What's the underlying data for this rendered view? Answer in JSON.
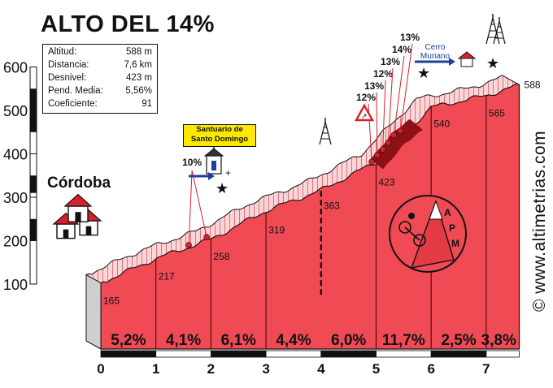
{
  "chart_data": {
    "type": "area",
    "title": "ALTO DEL 14%",
    "xlabel": "",
    "ylabel": "",
    "x_unit": "km",
    "xlim": [
      0,
      7.6
    ],
    "ylim": [
      100,
      600
    ],
    "y_ticks": [
      100,
      200,
      300,
      400,
      500,
      600
    ],
    "x_ticks": [
      0,
      1,
      2,
      3,
      4,
      5,
      6,
      7
    ],
    "profile": [
      {
        "x": 0,
        "y": 165
      },
      {
        "x": 1,
        "y": 217
      },
      {
        "x": 2,
        "y": 258
      },
      {
        "x": 3,
        "y": 319
      },
      {
        "x": 4,
        "y": 363
      },
      {
        "x": 5,
        "y": 423
      },
      {
        "x": 6,
        "y": 540
      },
      {
        "x": 7,
        "y": 565
      },
      {
        "x": 7.6,
        "y": 588
      }
    ],
    "km_altitude_labels": [
      "165",
      "217",
      "258",
      "319",
      "363",
      "423",
      "540",
      "565",
      "588"
    ],
    "segment_gradients": [
      "5,2%",
      "4,1%",
      "6,1%",
      "4,4%",
      "6,0%",
      "11,7%",
      "2,5%",
      "3,8%"
    ],
    "ramp_labels": [
      {
        "x": 1.65,
        "text": "10%"
      },
      {
        "x": 5.0,
        "text": "12%"
      },
      {
        "x": 5.1,
        "text": "13%"
      },
      {
        "x": 5.2,
        "text": "12%"
      },
      {
        "x": 5.3,
        "text": "13%"
      },
      {
        "x": 5.4,
        "text": "14%"
      },
      {
        "x": 5.52,
        "text": "13%"
      }
    ],
    "stats": [
      {
        "label": "Altitud:",
        "value": "588 m"
      },
      {
        "label": "Distancia:",
        "value": "7,6 km"
      },
      {
        "label": "Desnivel:",
        "value": "423 m"
      },
      {
        "label": "Pend. Media:",
        "value": "5,56%"
      },
      {
        "label": "Coeficiente:",
        "value": "91"
      }
    ],
    "start_label": "Córdoba",
    "poi": {
      "line1": "Santuario de",
      "line2": "Santo Domingo"
    },
    "cerro": {
      "line1": "Cerro",
      "line2": "Muriano"
    },
    "badge_letters": [
      "A",
      "P",
      "M"
    ],
    "watermark": "© www.altimetrias.com",
    "colors": {
      "fill": "#f04a55",
      "road_light": "#fbd5d8",
      "side": "#cfcfcf",
      "steep": "#8b1116",
      "marker": "#d8202a",
      "blue": "#1d3f9c",
      "yellow": "#ffe800"
    }
  }
}
